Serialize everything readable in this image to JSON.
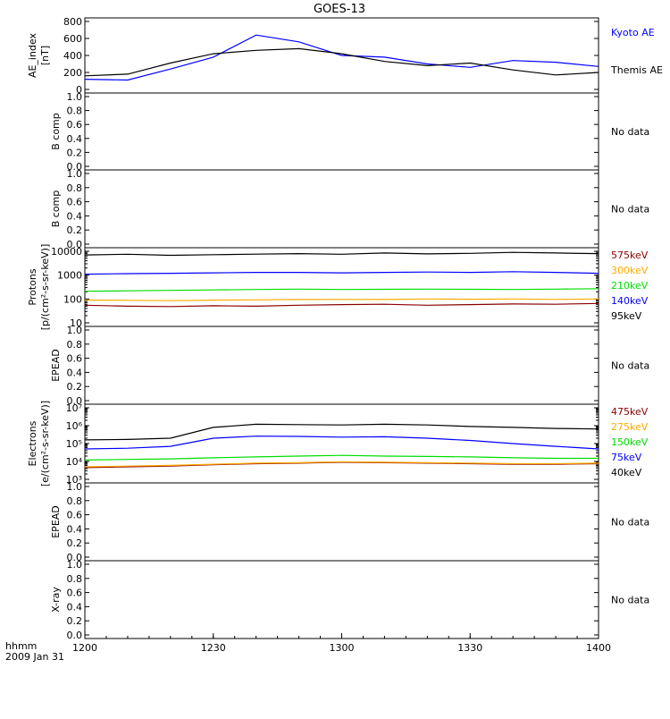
{
  "title": "GOES-13",
  "footer": {
    "time_label": "hhmm",
    "date_label": "2009 Jan 31"
  },
  "x_ticks": [
    "1200",
    "1230",
    "1300",
    "1330",
    "1400"
  ],
  "colors": {
    "black": "#000000",
    "blue": "#0000ff",
    "green": "#00dd00",
    "orange": "#ffaa00",
    "darkred": "#8b0000"
  },
  "chart_data": [
    {
      "type": "line",
      "ylabel_lines": [
        "AE_index",
        "[nT]"
      ],
      "ylim": [
        0,
        800
      ],
      "yticks": [
        "0",
        "200",
        "400",
        "600",
        "800"
      ],
      "x": [
        0,
        10,
        20,
        30,
        40,
        50,
        60,
        70,
        80,
        90,
        100,
        110,
        120
      ],
      "series": [
        {
          "name": "Kyoto AE",
          "color": "#0000ff",
          "values": [
            120,
            110,
            240,
            380,
            640,
            560,
            400,
            380,
            300,
            260,
            340,
            320,
            270
          ]
        },
        {
          "name": "Themis AE",
          "color": "#000000",
          "values": [
            160,
            180,
            310,
            420,
            460,
            480,
            420,
            330,
            280,
            310,
            230,
            170,
            200
          ]
        }
      ],
      "right_labels": [
        {
          "text": "Kyoto AE",
          "color": "#0000ff"
        },
        {
          "text": "Themis AE",
          "color": "#000000"
        }
      ]
    },
    {
      "type": "line",
      "ylabel_lines": [
        "B comp"
      ],
      "ylim": [
        0,
        1
      ],
      "yticks": [
        "0.0",
        "0.2",
        "0.4",
        "0.6",
        "0.8",
        "1.0"
      ],
      "series": [],
      "right_labels": [
        {
          "text": "No data",
          "color": "#000000"
        }
      ]
    },
    {
      "type": "line",
      "ylabel_lines": [
        "B comp"
      ],
      "ylim": [
        0,
        1
      ],
      "yticks": [
        "0.0",
        "0.2",
        "0.4",
        "0.6",
        "0.8",
        "1.0"
      ],
      "series": [],
      "right_labels": [
        {
          "text": "No data",
          "color": "#000000"
        }
      ]
    },
    {
      "type": "line",
      "log": true,
      "ylabel_lines": [
        "Protons",
        "[p/(cm²-s-sr-keV)]"
      ],
      "ylim": [
        10,
        10000
      ],
      "yticks": [
        "10",
        "100",
        "1000",
        "10000"
      ],
      "x": [
        0,
        10,
        20,
        30,
        40,
        50,
        60,
        70,
        80,
        90,
        100,
        110,
        120
      ],
      "series": [
        {
          "name": "575keV",
          "color": "#8b0000",
          "values": [
            55,
            50,
            48,
            52,
            50,
            55,
            58,
            60,
            55,
            58,
            62,
            60,
            65
          ]
        },
        {
          "name": "300keV",
          "color": "#ffaa00",
          "values": [
            90,
            88,
            85,
            90,
            92,
            95,
            96,
            95,
            100,
            98,
            100,
            96,
            100
          ]
        },
        {
          "name": "210keV",
          "color": "#00dd00",
          "values": [
            210,
            220,
            230,
            240,
            250,
            260,
            250,
            255,
            260,
            255,
            250,
            260,
            270
          ]
        },
        {
          "name": "140keV",
          "color": "#0000ff",
          "values": [
            1100,
            1150,
            1200,
            1250,
            1300,
            1300,
            1250,
            1300,
            1350,
            1300,
            1400,
            1300,
            1200
          ]
        },
        {
          "name": "95keV",
          "color": "#000000",
          "values": [
            7000,
            7500,
            6800,
            7200,
            7600,
            8000,
            7500,
            8500,
            7800,
            8200,
            9000,
            8500,
            8000
          ]
        }
      ],
      "right_labels": [
        {
          "text": "575keV",
          "color": "#8b0000"
        },
        {
          "text": "300keV",
          "color": "#ffaa00"
        },
        {
          "text": "210keV",
          "color": "#00dd00"
        },
        {
          "text": "140keV",
          "color": "#0000ff"
        },
        {
          "text": "95keV",
          "color": "#000000"
        }
      ]
    },
    {
      "type": "line",
      "ylabel_lines": [
        "EPEAD"
      ],
      "ylim": [
        0,
        1
      ],
      "yticks": [
        "0.0",
        "0.2",
        "0.4",
        "0.6",
        "0.8",
        "1.0"
      ],
      "series": [],
      "right_labels": [
        {
          "text": "No data",
          "color": "#000000"
        }
      ]
    },
    {
      "type": "line",
      "log": true,
      "ylabel_lines": [
        "Electrons",
        "[e/(cm²-s-sr-keV)]"
      ],
      "ylim": [
        1000,
        10000000
      ],
      "yticks": [
        "10³",
        "10⁴",
        "10⁵",
        "10⁶",
        "10⁷"
      ],
      "x": [
        0,
        10,
        20,
        30,
        40,
        50,
        60,
        70,
        80,
        90,
        100,
        110,
        120
      ],
      "series": [
        {
          "name": "475keV",
          "color": "#8b0000",
          "values": [
            4500,
            5000,
            5500,
            6500,
            7500,
            8000,
            9000,
            8500,
            8000,
            7500,
            7000,
            7000,
            7500
          ]
        },
        {
          "name": "275keV",
          "color": "#ffaa00",
          "values": [
            5000,
            5500,
            6000,
            7000,
            8000,
            8500,
            9500,
            9000,
            8500,
            8000,
            7500,
            7500,
            8000
          ]
        },
        {
          "name": "150keV",
          "color": "#00dd00",
          "values": [
            12000,
            13000,
            14000,
            16000,
            18000,
            20000,
            22000,
            20000,
            19000,
            18000,
            16000,
            15000,
            15000
          ]
        },
        {
          "name": "75keV",
          "color": "#0000ff",
          "values": [
            50000,
            55000,
            70000,
            200000,
            260000,
            250000,
            230000,
            240000,
            200000,
            150000,
            100000,
            70000,
            50000
          ]
        },
        {
          "name": "40keV",
          "color": "#000000",
          "values": [
            160000,
            170000,
            200000,
            800000,
            1200000,
            1150000,
            1100000,
            1200000,
            1100000,
            900000,
            800000,
            700000,
            650000
          ]
        }
      ],
      "right_labels": [
        {
          "text": "475keV",
          "color": "#8b0000"
        },
        {
          "text": "275keV",
          "color": "#ffaa00"
        },
        {
          "text": "150keV",
          "color": "#00dd00"
        },
        {
          "text": "75keV",
          "color": "#0000ff"
        },
        {
          "text": "40keV",
          "color": "#000000"
        }
      ]
    },
    {
      "type": "line",
      "ylabel_lines": [
        "EPEAD"
      ],
      "ylim": [
        0,
        1
      ],
      "yticks": [
        "0.0",
        "0.2",
        "0.4",
        "0.6",
        "0.8",
        "1.0"
      ],
      "series": [],
      "right_labels": [
        {
          "text": "No data",
          "color": "#000000"
        }
      ]
    },
    {
      "type": "line",
      "ylabel_lines": [
        "X-ray"
      ],
      "ylim": [
        0,
        1
      ],
      "yticks": [
        "0.0",
        "0.2",
        "0.4",
        "0.6",
        "0.8",
        "1.0"
      ],
      "series": [],
      "right_labels": [
        {
          "text": "No data",
          "color": "#000000"
        }
      ]
    }
  ]
}
